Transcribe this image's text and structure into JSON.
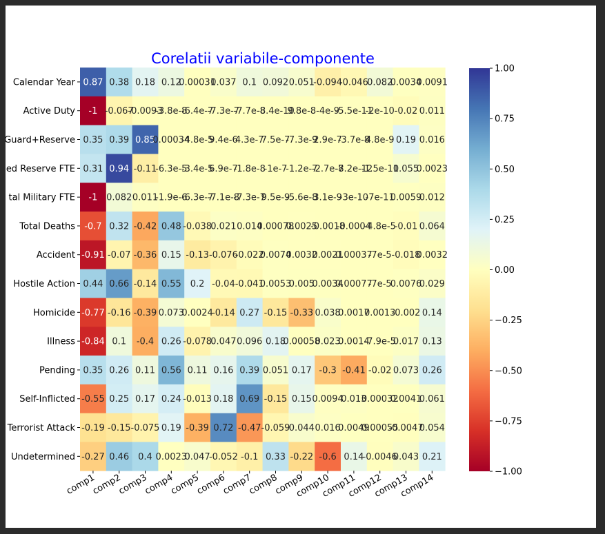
{
  "chart_data": {
    "type": "heatmap",
    "title": "Corelatii variabile-componente",
    "title_color": "#0000ff",
    "colormap": "RdYlBu",
    "vmin": -1,
    "vmax": 1,
    "rows": [
      "Calendar Year",
      "Active Duty",
      "Guard+Reserve",
      "Selected Reserve FTE",
      "Total Military FTE",
      "Total Deaths",
      "Accident",
      "Hostile Action",
      "Homicide",
      "Illness",
      "Pending",
      "Self-Inflicted",
      "Terrorist Attack",
      "Undetermined"
    ],
    "row_labels_visible": [
      "Calendar Year",
      "Active Duty",
      "Guard+Reserve",
      "ed Reserve FTE",
      "tal Military FTE",
      "Total Deaths",
      "Accident",
      "Hostile Action",
      "Homicide",
      "Illness",
      "Pending",
      "Self-Inflicted",
      "Terrorist Attack",
      "Undetermined"
    ],
    "columns": [
      "comp1",
      "comp2",
      "comp3",
      "comp4",
      "comp5",
      "comp6",
      "comp7",
      "comp8",
      "comp9",
      "comp10",
      "comp11",
      "comp12",
      "comp13",
      "comp14"
    ],
    "values": [
      [
        0.87,
        0.38,
        0.18,
        0.12,
        0.00031,
        0.037,
        0.1,
        0.092,
        0.051,
        -0.094,
        -0.046,
        0.082,
        0.0034,
        0.0091
      ],
      [
        -1,
        -0.067,
        -0.0093,
        -3.8e-08,
        -6.4e-07,
        -7.3e-07,
        -7.7e-08,
        -8.4e-10,
        9.8e-08,
        -4e-09,
        -5.5e-11,
        -2e-10,
        -0.02,
        0.011
      ],
      [
        0.35,
        0.39,
        0.85,
        0.00034,
        -4.8e-05,
        9.4e-06,
        4.3e-07,
        7.5e-07,
        -7.3e-09,
        2.9e-07,
        -3.7e-08,
        4.8e-09,
        0.19,
        0.016
      ],
      [
        0.31,
        0.94,
        -0.11,
        -6.3e-05,
        -3.4e-05,
        6.9e-07,
        -1.8e-08,
        -1e-07,
        -1.2e-07,
        -2.7e-07,
        -8.2e-12,
        -1.5e-11,
        0.055,
        0.0023
      ],
      [
        -1,
        0.082,
        0.011,
        -1.9e-06,
        -6.3e-07,
        -7.1e-08,
        -7.3e-07,
        9.5e-09,
        -5.6e-08,
        3.1e-09,
        -3e-10,
        -7e-11,
        0.0059,
        0.012
      ],
      [
        -0.7,
        0.32,
        -0.42,
        0.48,
        -0.038,
        0.021,
        0.014,
        0.00078,
        0.0025,
        -0.0018,
        -0.0004,
        -4.8e-05,
        -0.01,
        0.064
      ],
      [
        -0.91,
        -0.07,
        -0.36,
        0.15,
        -0.13,
        -0.076,
        -0.022,
        0.0074,
        0.0032,
        0.0021,
        0.00037,
        -7e-05,
        -0.018,
        0.0032
      ],
      [
        0.44,
        0.66,
        -0.14,
        0.55,
        0.2,
        -0.04,
        -0.041,
        0.0053,
        0.005,
        0.0034,
        0.00077,
        -7e-05,
        0.0076,
        0.029
      ],
      [
        -0.77,
        -0.16,
        -0.39,
        0.073,
        0.0024,
        -0.14,
        0.27,
        -0.15,
        -0.33,
        0.038,
        0.0017,
        0.0013,
        -0.002,
        0.14
      ],
      [
        -0.84,
        0.1,
        -0.4,
        0.26,
        -0.078,
        0.047,
        0.096,
        0.18,
        0.00058,
        0.023,
        0.0014,
        -7.9e-05,
        0.017,
        0.13
      ],
      [
        0.35,
        0.26,
        0.11,
        0.56,
        0.11,
        0.16,
        0.39,
        0.051,
        0.17,
        -0.3,
        -0.41,
        -0.02,
        0.073,
        0.26
      ],
      [
        -0.55,
        0.25,
        0.17,
        0.24,
        -0.013,
        0.18,
        0.69,
        -0.15,
        0.15,
        0.0094,
        0.013,
        0.00032,
        0.0041,
        0.061
      ],
      [
        -0.19,
        -0.15,
        -0.075,
        0.19,
        -0.39,
        0.72,
        -0.47,
        -0.059,
        0.044,
        0.016,
        0.0049,
        0.00055,
        -0.0047,
        0.054
      ],
      [
        -0.27,
        0.46,
        0.4,
        0.0023,
        0.047,
        -0.052,
        -0.1,
        0.33,
        -0.22,
        -0.6,
        0.14,
        -0.0046,
        0.043,
        0.21
      ]
    ],
    "annotations": [
      [
        "0.87",
        "0.38",
        "0.18",
        "0.12",
        "0.00031",
        "0.037",
        "0.1",
        "0.092",
        "0.051",
        "-0.094",
        "-0.046",
        "0.082",
        "0.0034",
        "0.0091"
      ],
      [
        "-1",
        "-0.067",
        "-0.0093",
        "-3.8e-8",
        "-6.4e-7",
        "-7.3e-7",
        "-7.7e-8",
        "-8.4e-10",
        "9.8e-8",
        "-4e-9",
        "-5.5e-11",
        "-2e-10",
        "-0.02",
        "0.011"
      ],
      [
        "0.35",
        "0.39",
        "0.85",
        "0.00034",
        "-4.8e-5",
        "9.4e-6",
        "4.3e-7",
        "7.5e-7",
        "-7.3e-9",
        "2.9e-7",
        "-3.7e-8",
        "4.8e-9",
        "0.19",
        "0.016"
      ],
      [
        "0.31",
        "0.94",
        "-0.11",
        "-6.3e-5",
        "-3.4e-5",
        "6.9e-7",
        "-1.8e-8",
        "-1e-7",
        "-1.2e-7",
        "-2.7e-7",
        "-8.2e-12",
        "-1.5e-11",
        "0.055",
        "0.0023"
      ],
      [
        "-1",
        "0.082",
        "0.011",
        "-1.9e-6",
        "-6.3e-7",
        "-7.1e-8",
        "-7.3e-7",
        "9.5e-9",
        "-5.6e-8",
        "3.1e-9",
        "-3e-10",
        "-7e-11",
        "0.0059",
        "0.012"
      ],
      [
        "-0.7",
        "0.32",
        "-0.42",
        "0.48",
        "-0.038",
        "0.021",
        "0.014",
        "0.00078",
        "0.0025",
        "-0.0018",
        "-0.0004",
        "-4.8e-5",
        "-0.01",
        "0.064"
      ],
      [
        "-0.91",
        "-0.07",
        "-0.36",
        "0.15",
        "-0.13",
        "-0.076",
        "-0.022",
        "0.0074",
        "0.0032",
        "0.0021",
        "0.00037",
        "-7e-5",
        "-0.018",
        "0.0032"
      ],
      [
        "0.44",
        "0.66",
        "-0.14",
        "0.55",
        "0.2",
        "-0.04",
        "-0.041",
        "0.0053",
        "0.005",
        "0.0034",
        "0.00077",
        "-7e-5",
        "0.0076",
        "0.029"
      ],
      [
        "-0.77",
        "-0.16",
        "-0.39",
        "0.073",
        "0.0024",
        "-0.14",
        "0.27",
        "-0.15",
        "-0.33",
        "0.038",
        "0.0017",
        "0.0013",
        "-0.002",
        "0.14"
      ],
      [
        "-0.84",
        "0.1",
        "-0.4",
        "0.26",
        "-0.078",
        "0.047",
        "0.096",
        "0.18",
        "0.00058",
        "0.023",
        "0.0014",
        "-7.9e-5",
        "0.017",
        "0.13"
      ],
      [
        "0.35",
        "0.26",
        "0.11",
        "0.56",
        "0.11",
        "0.16",
        "0.39",
        "0.051",
        "0.17",
        "-0.3",
        "-0.41",
        "-0.02",
        "0.073",
        "0.26"
      ],
      [
        "-0.55",
        "0.25",
        "0.17",
        "0.24",
        "-0.013",
        "0.18",
        "0.69",
        "-0.15",
        "0.15",
        "0.0094",
        "0.013",
        "0.00032",
        "0.0041",
        "0.061"
      ],
      [
        "-0.19",
        "-0.15",
        "-0.075",
        "0.19",
        "-0.39",
        "0.72",
        "-0.47",
        "-0.059",
        "0.044",
        "0.016",
        "0.0049",
        "0.00055",
        "-0.0047",
        "0.054"
      ],
      [
        "-0.27",
        "0.46",
        "0.4",
        "0.0023",
        "0.047",
        "-0.052",
        "-0.1",
        "0.33",
        "-0.22",
        "-0.6",
        "0.14",
        "-0.0046",
        "0.043",
        "0.21"
      ]
    ],
    "colorbar_ticks": [
      1.0,
      0.75,
      0.5,
      0.25,
      0.0,
      -0.25,
      -0.5,
      -0.75,
      -1.0
    ],
    "colorbar_tick_labels": [
      "1.00",
      "0.75",
      "0.50",
      "0.25",
      "0.00",
      "−0.25",
      "−0.50",
      "−0.75",
      "−1.00"
    ],
    "grid": false,
    "legend": "colorbar-right"
  }
}
